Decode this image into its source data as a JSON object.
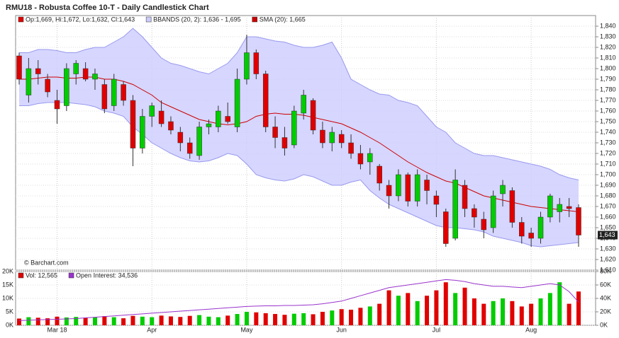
{
  "title": "RMU18 - Robusta Coffee 10-T - Daily Candlestick Chart",
  "credit": "© Barchart.com",
  "chart_data": [
    {
      "type": "candlestick",
      "legend": [
        "Op:1,669, Hi:1,672, Lo:1,632, Cl:1,643",
        "BBANDS (20, 2): 1,636 - 1,695",
        "SMA (20): 1,665"
      ],
      "legend_colors": [
        "#e00000",
        "#ccccff",
        "#cc0000"
      ],
      "categories": [
        null,
        null,
        null,
        null,
        "Mar 18",
        null,
        null,
        null,
        null,
        null,
        null,
        null,
        null,
        null,
        "Apr",
        null,
        null,
        null,
        null,
        null,
        null,
        null,
        null,
        null,
        "May",
        null,
        null,
        null,
        null,
        null,
        null,
        null,
        null,
        null,
        "Jun",
        null,
        null,
        null,
        null,
        null,
        null,
        null,
        null,
        null,
        "Jul",
        null,
        null,
        null,
        null,
        null,
        null,
        null,
        null,
        null,
        "Aug",
        null,
        null,
        null,
        null,
        null
      ],
      "open": [
        1812,
        1775,
        1800,
        1790,
        1770,
        1765,
        1795,
        1800,
        1790,
        1785,
        1765,
        1785,
        1770,
        1725,
        1755,
        1760,
        1750,
        1740,
        1730,
        1718,
        1745,
        1745,
        1755,
        1745,
        1790,
        1815,
        1795,
        1745,
        1735,
        1728,
        1758,
        1770,
        1742,
        1730,
        1738,
        1730,
        1720,
        1712,
        1708,
        1690,
        1680,
        1700,
        1675,
        1695,
        1680,
        1665,
        1640,
        1690,
        1668,
        1658,
        1650,
        1682,
        1685,
        1655,
        1645,
        1640,
        1660,
        1665,
        1670,
        1669
      ],
      "high": [
        1815,
        1810,
        1808,
        1795,
        1780,
        1805,
        1808,
        1806,
        1800,
        1790,
        1795,
        1788,
        1775,
        1762,
        1768,
        1770,
        1755,
        1745,
        1735,
        1750,
        1752,
        1765,
        1768,
        1800,
        1832,
        1818,
        1798,
        1755,
        1745,
        1765,
        1780,
        1772,
        1750,
        1745,
        1742,
        1738,
        1728,
        1725,
        1710,
        1695,
        1705,
        1702,
        1705,
        1700,
        1685,
        1668,
        1705,
        1695,
        1672,
        1665,
        1685,
        1695,
        1688,
        1660,
        1650,
        1665,
        1682,
        1678,
        1678,
        1672
      ],
      "low": [
        1785,
        1768,
        1785,
        1773,
        1748,
        1760,
        1785,
        1788,
        1780,
        1758,
        1760,
        1765,
        1708,
        1720,
        1745,
        1745,
        1738,
        1722,
        1715,
        1714,
        1738,
        1740,
        1748,
        1740,
        1785,
        1790,
        1740,
        1725,
        1718,
        1725,
        1752,
        1738,
        1725,
        1722,
        1725,
        1715,
        1705,
        1700,
        1685,
        1668,
        1675,
        1670,
        1670,
        1672,
        1660,
        1632,
        1638,
        1660,
        1650,
        1640,
        1645,
        1670,
        1650,
        1635,
        1632,
        1635,
        1655,
        1655,
        1660,
        1632
      ],
      "close": [
        1790,
        1800,
        1795,
        1778,
        1762,
        1800,
        1805,
        1790,
        1795,
        1762,
        1790,
        1770,
        1725,
        1755,
        1765,
        1748,
        1742,
        1730,
        1720,
        1745,
        1748,
        1760,
        1750,
        1790,
        1815,
        1795,
        1745,
        1735,
        1725,
        1760,
        1775,
        1742,
        1730,
        1740,
        1730,
        1720,
        1710,
        1720,
        1692,
        1680,
        1700,
        1675,
        1700,
        1685,
        1672,
        1635,
        1695,
        1668,
        1660,
        1648,
        1680,
        1690,
        1655,
        1642,
        1640,
        1660,
        1680,
        1672,
        1668,
        1643
      ],
      "bb_upper": [
        1815,
        1815,
        1818,
        1818,
        1817,
        1815,
        1815,
        1818,
        1820,
        1820,
        1825,
        1830,
        1838,
        1830,
        1820,
        1810,
        1805,
        1803,
        1800,
        1797,
        1795,
        1800,
        1805,
        1815,
        1830,
        1830,
        1828,
        1826,
        1825,
        1822,
        1820,
        1820,
        1822,
        1825,
        1810,
        1790,
        1785,
        1780,
        1776,
        1775,
        1770,
        1768,
        1765,
        1755,
        1745,
        1740,
        1730,
        1725,
        1720,
        1718,
        1718,
        1716,
        1714,
        1712,
        1710,
        1708,
        1705,
        1700,
        1697,
        1695
      ],
      "bb_lower": [
        1765,
        1765,
        1767,
        1768,
        1768,
        1768,
        1767,
        1766,
        1764,
        1760,
        1758,
        1755,
        1745,
        1738,
        1730,
        1725,
        1720,
        1716,
        1713,
        1712,
        1713,
        1716,
        1720,
        1718,
        1710,
        1700,
        1697,
        1695,
        1694,
        1696,
        1700,
        1698,
        1694,
        1690,
        1690,
        1693,
        1695,
        1685,
        1678,
        1672,
        1668,
        1664,
        1660,
        1656,
        1652,
        1650,
        1650,
        1649,
        1648,
        1646,
        1642,
        1640,
        1638,
        1636,
        1633,
        1632,
        1633,
        1634,
        1635,
        1636
      ],
      "sma": [
        1790,
        1790,
        1791,
        1792,
        1792,
        1791,
        1791,
        1792,
        1792,
        1790,
        1790,
        1788,
        1785,
        1780,
        1775,
        1768,
        1764,
        1760,
        1756,
        1752,
        1750,
        1748,
        1747,
        1748,
        1750,
        1755,
        1757,
        1758,
        1757,
        1757,
        1756,
        1754,
        1752,
        1750,
        1748,
        1744,
        1740,
        1735,
        1730,
        1724,
        1718,
        1712,
        1707,
        1702,
        1698,
        1694,
        1692,
        1688,
        1684,
        1680,
        1678,
        1676,
        1674,
        1672,
        1670,
        1669,
        1668,
        1667,
        1666,
        1665
      ],
      "up_color": "#00cc00",
      "down_color": "#e00000",
      "band_color": "#ccccff",
      "band_line": "#9999ee",
      "sma_color": "#cc0000",
      "last_price_label": "1,643",
      "ylim": [
        1610,
        1850
      ],
      "yticks": [
        {
          "value": 1610,
          "label": "1,610"
        },
        {
          "value": 1620,
          "label": "1,620"
        },
        {
          "value": 1630,
          "label": "1,630"
        },
        {
          "value": 1640,
          "label": "1,640"
        },
        {
          "value": 1650,
          "label": "1,650"
        },
        {
          "value": 1660,
          "label": "1,660"
        },
        {
          "value": 1670,
          "label": "1,670"
        },
        {
          "value": 1680,
          "label": "1,680"
        },
        {
          "value": 1690,
          "label": "1,690"
        },
        {
          "value": 1700,
          "label": "1,700"
        },
        {
          "value": 1710,
          "label": "1,710"
        },
        {
          "value": 1720,
          "label": "1,720"
        },
        {
          "value": 1730,
          "label": "1,730"
        },
        {
          "value": 1740,
          "label": "1,740"
        },
        {
          "value": 1750,
          "label": "1,750"
        },
        {
          "value": 1760,
          "label": "1,760"
        },
        {
          "value": 1770,
          "label": "1,770"
        },
        {
          "value": 1780,
          "label": "1,780"
        },
        {
          "value": 1790,
          "label": "1,790"
        },
        {
          "value": 1800,
          "label": "1,800"
        },
        {
          "value": 1810,
          "label": "1,810"
        },
        {
          "value": 1820,
          "label": "1,820"
        },
        {
          "value": 1830,
          "label": "1,830"
        },
        {
          "value": 1840,
          "label": "1,840"
        }
      ],
      "grid": true
    },
    {
      "type": "bar",
      "legend": [
        "Vol: 12,565",
        "Open Interest: 34,536"
      ],
      "legend_colors": [
        "#e00000",
        "#9933cc"
      ],
      "series": [
        {
          "name": "Vol",
          "values": [
            2500,
            3000,
            2800,
            2600,
            3200,
            2900,
            3100,
            2800,
            3000,
            3400,
            3000,
            2600,
            3500,
            3200,
            3000,
            3600,
            3300,
            3100,
            3500,
            3800,
            3200,
            3000,
            3600,
            4200,
            5000,
            4800,
            4500,
            4200,
            3900,
            4300,
            4500,
            4100,
            5000,
            5500,
            6000,
            5800,
            6500,
            7000,
            8000,
            13000,
            11000,
            12000,
            9000,
            11000,
            13000,
            16000,
            12000,
            14000,
            10000,
            8000,
            9000,
            10000,
            9000,
            7000,
            8000,
            10000,
            12000,
            16000,
            8000,
            12565
          ]
        },
        {
          "name": "Open Interest",
          "axis": "y2",
          "color": "#9933cc",
          "values": [
            7000,
            7500,
            8000,
            8500,
            9000,
            9500,
            10000,
            11000,
            12000,
            13000,
            14000,
            15000,
            16000,
            17000,
            18000,
            19000,
            20000,
            21000,
            22000,
            23000,
            24000,
            25000,
            26000,
            27000,
            28000,
            28500,
            29000,
            29000,
            29500,
            29500,
            30000,
            30500,
            32000,
            34000,
            36000,
            40000,
            44000,
            48000,
            52000,
            56000,
            58000,
            60000,
            62000,
            64000,
            66000,
            68000,
            67000,
            65000,
            62000,
            60000,
            58000,
            58000,
            57000,
            56000,
            58000,
            60000,
            62000,
            60000,
            50000,
            34536
          ]
        }
      ],
      "ylim": [
        0,
        20000
      ],
      "yticks": [
        {
          "value": 0,
          "label": "0K"
        },
        {
          "value": 5000,
          "label": "5K"
        },
        {
          "value": 10000,
          "label": "10K"
        },
        {
          "value": 15000,
          "label": "15K"
        },
        {
          "value": 20000,
          "label": "20K"
        }
      ],
      "y2lim": [
        0,
        80000
      ],
      "y2ticks": [
        {
          "value": 0,
          "label": "0K"
        },
        {
          "value": 20000,
          "label": "20K"
        },
        {
          "value": 40000,
          "label": "40K"
        },
        {
          "value": 60000,
          "label": "60K"
        },
        {
          "value": 80000,
          "label": "80K"
        }
      ]
    }
  ]
}
